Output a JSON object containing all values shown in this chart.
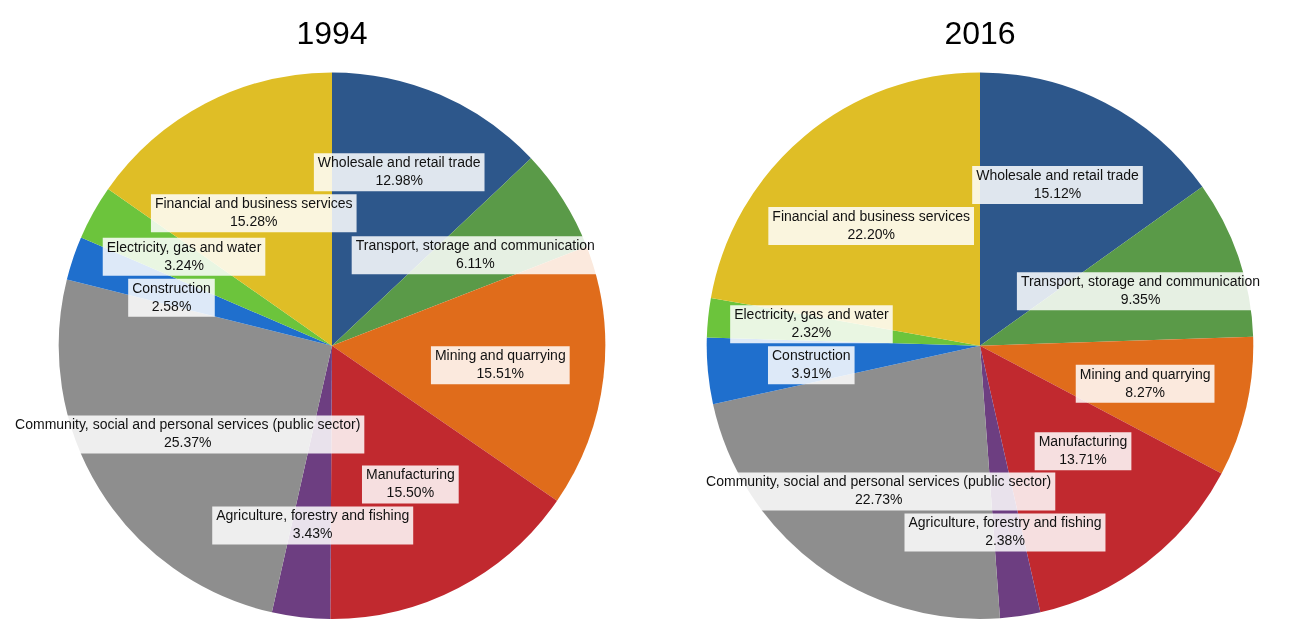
{
  "chart_data": [
    {
      "type": "pie",
      "title": "1994",
      "categories": [
        "Wholesale and retail trade",
        "Transport, storage and communication",
        "Mining and quarrying",
        "Manufacturing",
        "Agriculture, forestry and fishing",
        "Community, social and personal services (public sector)",
        "Construction",
        "Electricity, gas and water",
        "Financial and business services"
      ],
      "values": [
        12.98,
        6.11,
        15.51,
        15.5,
        3.43,
        25.37,
        2.58,
        3.24,
        15.28
      ],
      "value_labels": [
        "12.98%",
        "6.11%",
        "15.51%",
        "15.50%",
        "3.43%",
        "25.37%",
        "2.58%",
        "3.24%",
        "15.28%"
      ],
      "colors": [
        "#2d578b",
        "#5a9a48",
        "#e06c1b",
        "#c1292f",
        "#6d3e81",
        "#8e8e8e",
        "#1f6fcd",
        "#6cc43c",
        "#dfbe26"
      ],
      "legend": false
    },
    {
      "type": "pie",
      "title": "2016",
      "categories": [
        "Wholesale and retail trade",
        "Transport, storage and communication",
        "Mining and quarrying",
        "Manufacturing",
        "Agriculture, forestry and fishing",
        "Community, social and personal services (public sector)",
        "Construction",
        "Electricity, gas and water",
        "Financial and business services"
      ],
      "values": [
        15.12,
        9.35,
        8.27,
        13.71,
        2.38,
        22.73,
        3.91,
        2.32,
        22.2
      ],
      "value_labels": [
        "15.12%",
        "9.35%",
        "8.27%",
        "13.71%",
        "2.38%",
        "22.73%",
        "3.91%",
        "2.32%",
        "22.20%"
      ],
      "colors": [
        "#2d578b",
        "#5a9a48",
        "#e06c1b",
        "#c1292f",
        "#6d3e81",
        "#8e8e8e",
        "#1f6fcd",
        "#6cc43c",
        "#dfbe26"
      ],
      "legend": false
    }
  ]
}
